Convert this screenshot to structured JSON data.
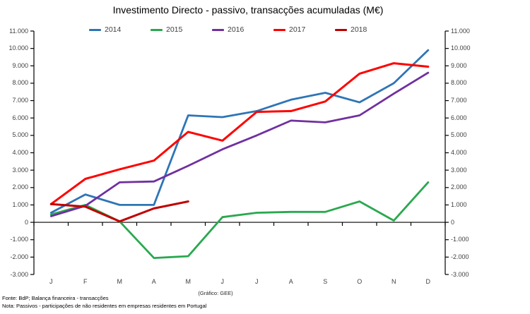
{
  "title": "Investimento Directo - passivo, transacções acumuladas (M€)",
  "footer": {
    "fonte": "Fonte: BdP; Balança financeira - transacções",
    "nota": "Nota: Passivos -  participações de não residentes em empresas residentes em Portugal",
    "grafico": "(Gráfico: GEE)"
  },
  "chart_data": {
    "type": "line",
    "title": "Investimento Directo - passivo, transacções acumuladas (M€)",
    "xlabel": "",
    "ylabel": "M€",
    "categories": [
      "J",
      "F",
      "M",
      "A",
      "M",
      "J",
      "J",
      "A",
      "S",
      "O",
      "N",
      "D"
    ],
    "series": [
      {
        "name": "2014",
        "color": "#2E75B6",
        "values": [
          550,
          1600,
          1000,
          1000,
          6150,
          6050,
          6400,
          7050,
          7450,
          6900,
          8000,
          9900
        ]
      },
      {
        "name": "2015",
        "color": "#2AA84F",
        "values": [
          450,
          1000,
          50,
          -2050,
          -1950,
          300,
          550,
          600,
          600,
          1200,
          100,
          2300
        ]
      },
      {
        "name": "2016",
        "color": "#7030A0",
        "values": [
          350,
          950,
          2300,
          2350,
          3250,
          4200,
          5000,
          5850,
          5750,
          6150,
          7400,
          8600
        ]
      },
      {
        "name": "2017",
        "color": "#FF0000",
        "values": [
          1050,
          2500,
          3050,
          3550,
          5200,
          4700,
          6350,
          6400,
          6950,
          8550,
          9150,
          8950
        ]
      },
      {
        "name": "2018",
        "color": "#C00000",
        "values": [
          1050,
          900,
          50,
          800,
          1200
        ]
      }
    ],
    "ylim": [
      -3000,
      11000
    ],
    "ytick_step": 1000,
    "ytick_labels": [
      "11.000",
      "10.000",
      "9.000",
      "8.000",
      "7.000",
      "6.000",
      "5.000",
      "4.000",
      "3.000",
      "2.000",
      "1.000",
      "0",
      "-1.000",
      "-2.000",
      "-3.000"
    ],
    "legend_position": "top",
    "grid": false,
    "axes": {
      "left": true,
      "right": true,
      "zero_line": true
    }
  }
}
